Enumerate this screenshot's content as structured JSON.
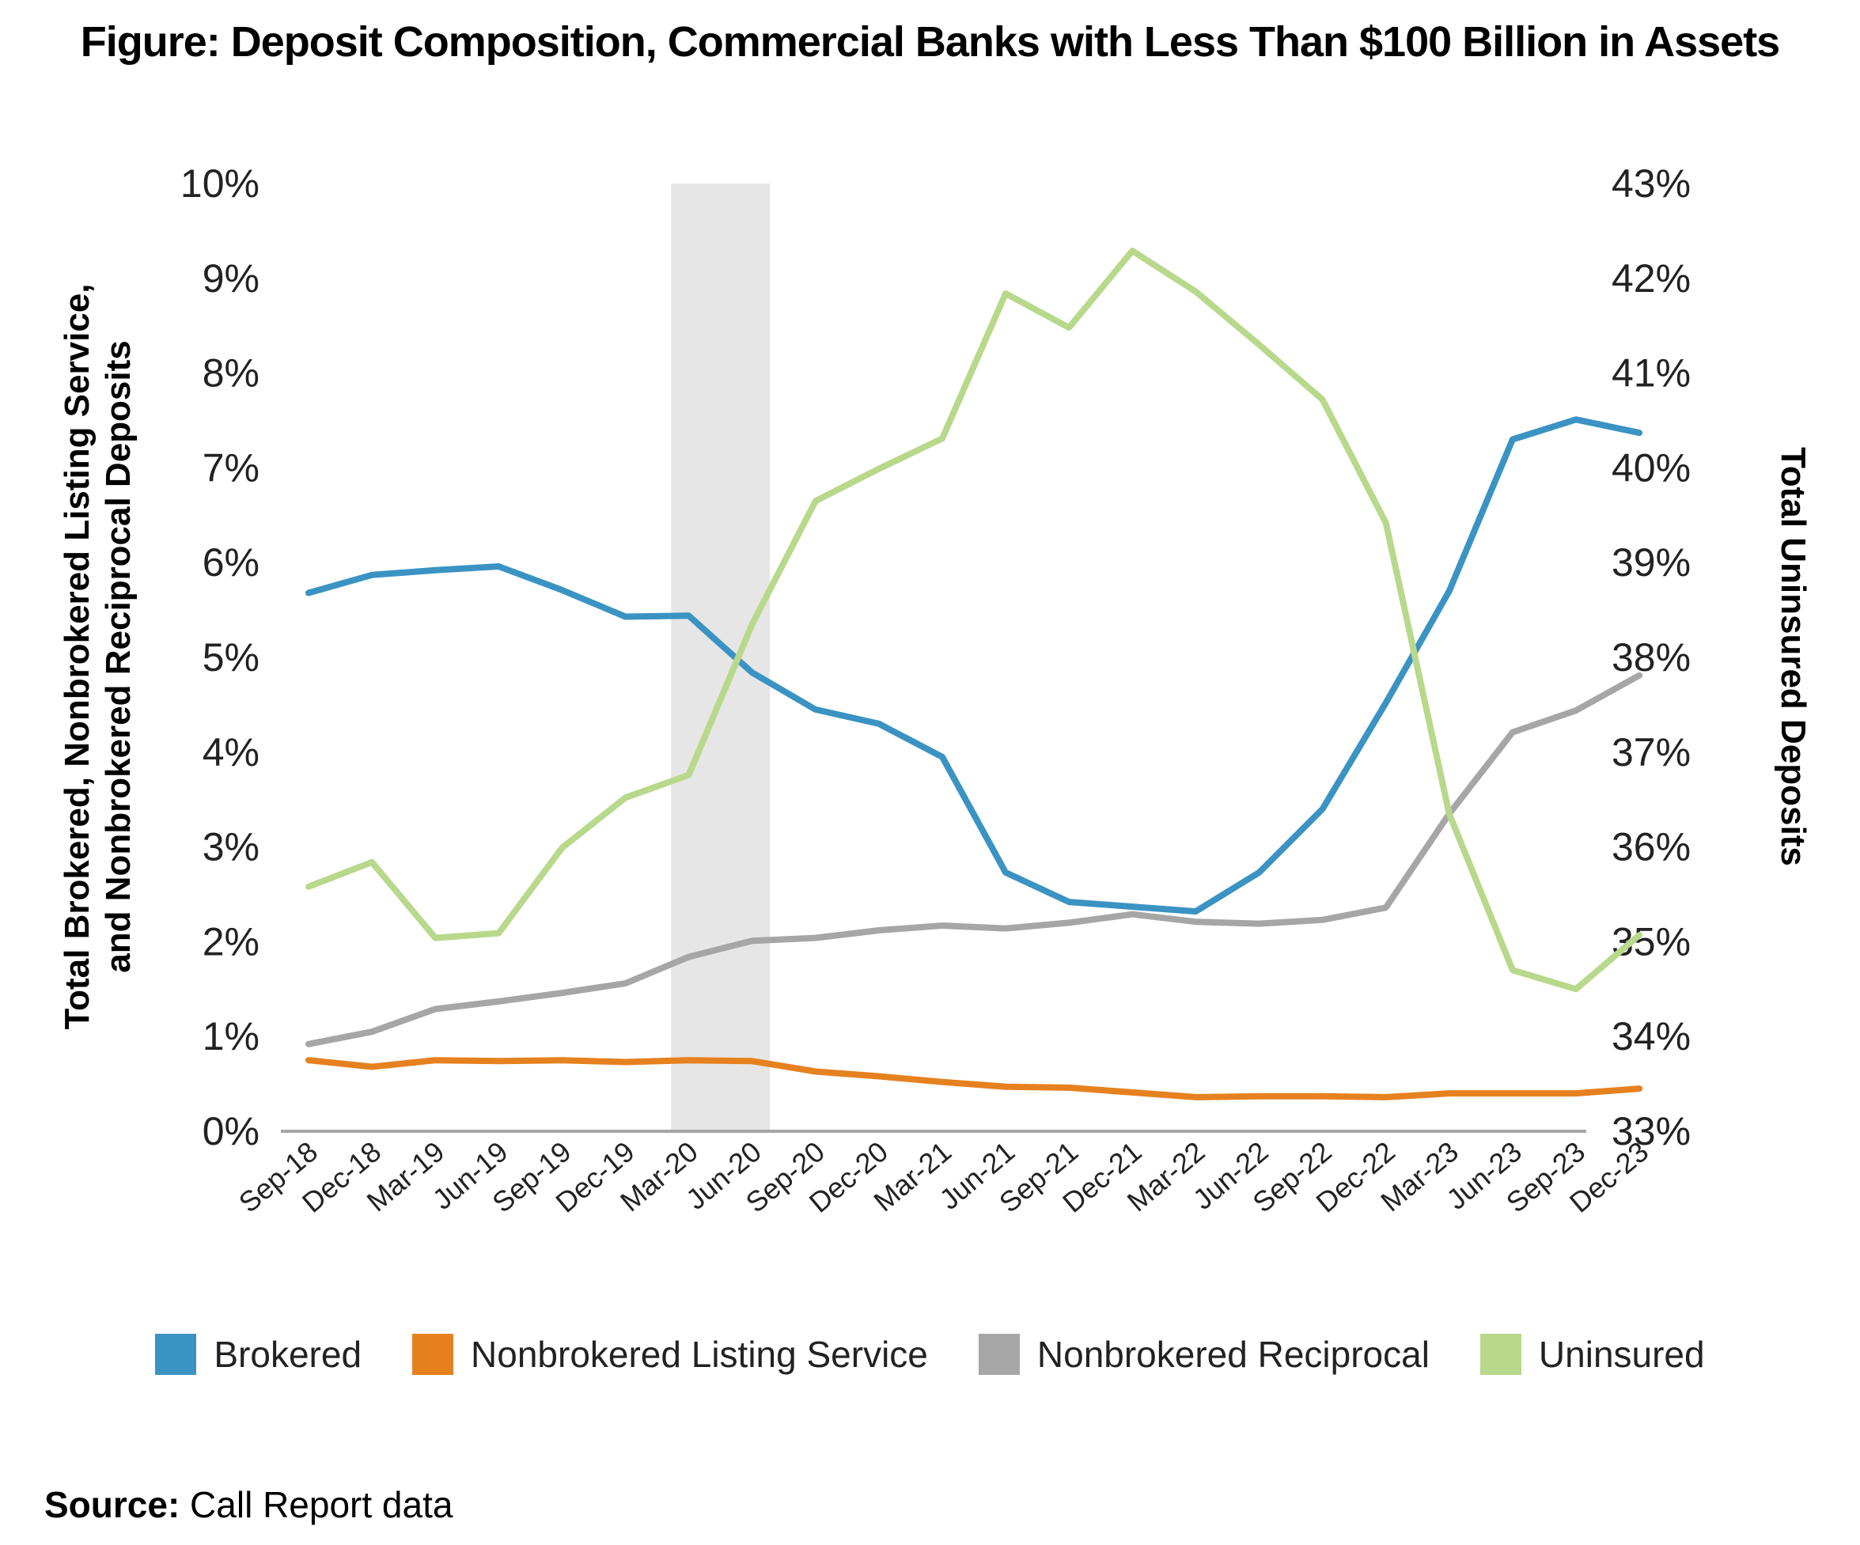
{
  "title": "Figure: Deposit Composition, Commercial Banks with Less Than $100 Billion in Assets",
  "source": {
    "label": "Source:",
    "text": "Call Report data"
  },
  "chart_data": {
    "type": "line",
    "categories": [
      "Sep-18",
      "Dec-18",
      "Mar-19",
      "Jun-19",
      "Sep-19",
      "Dec-19",
      "Mar-20",
      "Jun-20",
      "Sep-20",
      "Dec-20",
      "Mar-21",
      "Jun-21",
      "Sep-21",
      "Dec-21",
      "Mar-22",
      "Jun-22",
      "Sep-22",
      "Dec-22",
      "Mar-23",
      "Jun-23",
      "Sep-23",
      "Dec-23"
    ],
    "left_axis": {
      "label": "Total Brokered, Nonbrokered Listing Service,\nand Nonbrokered Reciprocal Deposits",
      "ylim": [
        0,
        10
      ],
      "ticks": [
        "0%",
        "1%",
        "2%",
        "3%",
        "4%",
        "5%",
        "6%",
        "7%",
        "8%",
        "9%",
        "10%"
      ]
    },
    "right_axis": {
      "label": "Total Uninsured Deposits",
      "ylim": [
        33,
        43
      ],
      "ticks": [
        "33%",
        "34%",
        "35%",
        "36%",
        "37%",
        "38%",
        "39%",
        "40%",
        "41%",
        "42%",
        "43%"
      ]
    },
    "shaded_region": {
      "from": "Mar-20",
      "to": "Jun-20",
      "color": "#e6e6e6"
    },
    "series": [
      {
        "name": "Brokered",
        "axis": "left",
        "color": "#3a93c3",
        "values": [
          5.68,
          5.87,
          5.92,
          5.96,
          5.71,
          5.43,
          5.44,
          4.84,
          4.45,
          4.3,
          3.95,
          2.73,
          2.42,
          2.37,
          2.32,
          2.73,
          3.4,
          4.52,
          5.7,
          7.3,
          7.51,
          7.37
        ]
      },
      {
        "name": "Nonbrokered Listing Service",
        "axis": "left",
        "color": "#e6811f",
        "values": [
          0.75,
          0.68,
          0.75,
          0.74,
          0.75,
          0.73,
          0.75,
          0.74,
          0.63,
          0.58,
          0.52,
          0.47,
          0.46,
          0.41,
          0.36,
          0.37,
          0.37,
          0.36,
          0.4,
          0.4,
          0.4,
          0.45
        ]
      },
      {
        "name": "Nonbrokered Reciprocal",
        "axis": "left",
        "color": "#a6a6a6",
        "values": [
          0.92,
          1.05,
          1.29,
          1.37,
          1.46,
          1.56,
          1.84,
          2.01,
          2.04,
          2.12,
          2.17,
          2.14,
          2.2,
          2.29,
          2.21,
          2.19,
          2.23,
          2.36,
          3.35,
          4.21,
          4.44,
          4.81
        ]
      },
      {
        "name": "Uninsured",
        "axis": "right",
        "color": "#b8d88b",
        "values": [
          35.58,
          35.84,
          35.04,
          35.09,
          35.99,
          36.52,
          36.76,
          38.35,
          39.65,
          39.99,
          40.31,
          41.84,
          41.48,
          42.29,
          41.86,
          41.3,
          40.72,
          39.42,
          36.35,
          34.7,
          34.5,
          35.07
        ]
      }
    ],
    "grid": false,
    "legend_position": "bottom"
  }
}
